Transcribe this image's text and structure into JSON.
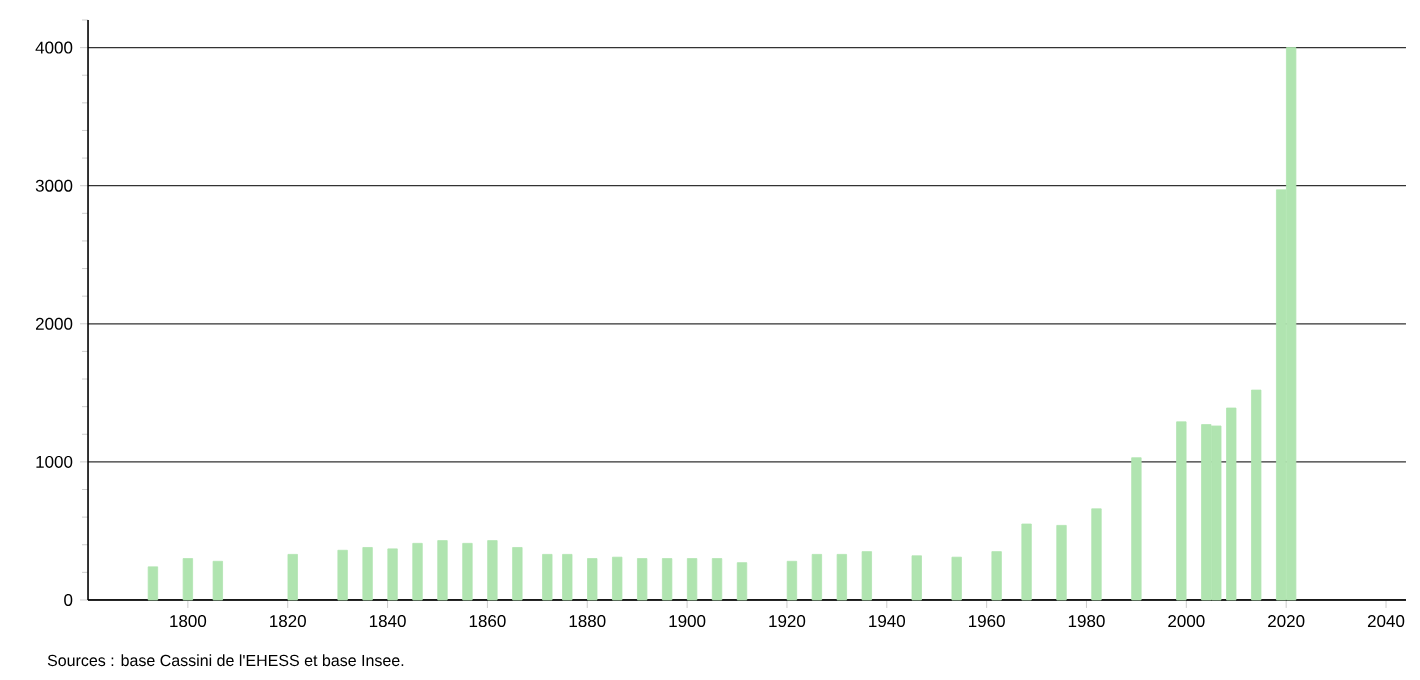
{
  "chart_data": {
    "type": "bar",
    "color": "#b0e4b0",
    "x": [
      1793,
      1800,
      1806,
      1821,
      1831,
      1836,
      1841,
      1846,
      1851,
      1856,
      1861,
      1866,
      1872,
      1876,
      1881,
      1886,
      1891,
      1896,
      1901,
      1906,
      1911,
      1921,
      1926,
      1931,
      1936,
      1946,
      1954,
      1962,
      1968,
      1975,
      1982,
      1990,
      1999,
      2004,
      2006,
      2009,
      2014,
      2019,
      2021
    ],
    "values": [
      240,
      300,
      280,
      330,
      360,
      380,
      370,
      410,
      430,
      410,
      430,
      380,
      330,
      330,
      300,
      310,
      300,
      300,
      300,
      300,
      270,
      280,
      330,
      330,
      350,
      320,
      310,
      350,
      550,
      540,
      660,
      1030,
      1290,
      1270,
      1260,
      1390,
      1520,
      2970,
      4000
    ],
    "xlim": [
      1780,
      2044
    ],
    "xticks": [
      1800,
      1820,
      1840,
      1860,
      1880,
      1900,
      1920,
      1940,
      1960,
      1980,
      2000,
      2020,
      2040
    ],
    "ylim": [
      0,
      4200
    ],
    "yticks": [
      0,
      {
        "value": 200,
        "label": null
      },
      {
        "value": 400,
        "label": null
      },
      {
        "value": 600,
        "label": null
      },
      {
        "value": 800,
        "label": null
      },
      1000,
      {
        "value": 1200,
        "label": null
      },
      {
        "value": 1400,
        "label": null
      },
      {
        "value": 1600,
        "label": null
      },
      {
        "value": 1800,
        "label": null
      },
      2000,
      {
        "value": 2200,
        "label": null
      },
      {
        "value": 2400,
        "label": null
      },
      {
        "value": 2600,
        "label": null
      },
      {
        "value": 2800,
        "label": null
      },
      3000,
      {
        "value": 3200,
        "label": null
      },
      {
        "value": 3400,
        "label": null
      },
      {
        "value": 3600,
        "label": null
      },
      {
        "value": 3800,
        "label": null
      },
      4000,
      {
        "value": 4200,
        "label": null
      }
    ],
    "grid": "y",
    "annotations": [
      "Sources : base Cassini de l'EHESS et base Insee."
    ]
  }
}
